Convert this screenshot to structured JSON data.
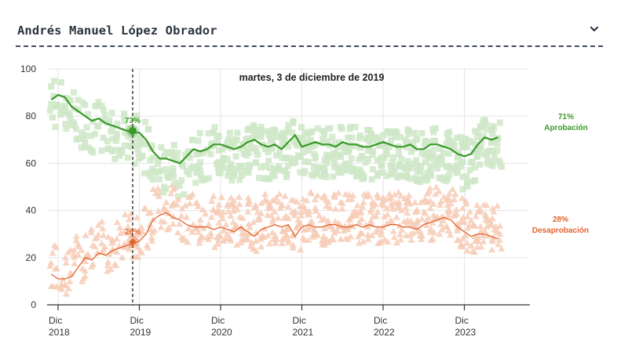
{
  "header": {
    "title": "Andrés Manuel López Obrador",
    "chevron_icon": "chevron-down-icon"
  },
  "colors": {
    "approve": "#3a9a2a",
    "approve_light": "#cfe8c8",
    "disapprove": "#e2632e",
    "disapprove_light": "#f7cdb7",
    "grid": "#e5e5e5",
    "axis": "#333333"
  },
  "chart_data": {
    "type": "line",
    "title": "",
    "hover_date": "martes, 3 de diciembre de 2019",
    "xlabel": "",
    "ylabel": "",
    "ylim": [
      0,
      100
    ],
    "yticks": [
      0,
      20,
      40,
      60,
      80,
      100
    ],
    "xlim": [
      "2018-11",
      "2024-05"
    ],
    "xticks": [
      {
        "month": "Dic",
        "year": "2018",
        "at": "2018-12"
      },
      {
        "month": "Dic",
        "year": "2019",
        "at": "2019-12"
      },
      {
        "month": "Dic",
        "year": "2020",
        "at": "2020-12"
      },
      {
        "month": "Dic",
        "year": "2021",
        "at": "2021-12"
      },
      {
        "month": "Dic",
        "year": "2022",
        "at": "2022-12"
      },
      {
        "month": "Dic",
        "year": "2023",
        "at": "2023-12"
      }
    ],
    "grid": true,
    "x_months": [
      "2018-11",
      "2018-12",
      "2019-01",
      "2019-02",
      "2019-03",
      "2019-04",
      "2019-05",
      "2019-06",
      "2019-07",
      "2019-08",
      "2019-09",
      "2019-10",
      "2019-11",
      "2019-12",
      "2020-01",
      "2020-02",
      "2020-03",
      "2020-04",
      "2020-05",
      "2020-06",
      "2020-07",
      "2020-08",
      "2020-09",
      "2020-10",
      "2020-11",
      "2020-12",
      "2021-01",
      "2021-02",
      "2021-03",
      "2021-04",
      "2021-05",
      "2021-06",
      "2021-07",
      "2021-08",
      "2021-09",
      "2021-10",
      "2021-11",
      "2021-12",
      "2022-01",
      "2022-02",
      "2022-03",
      "2022-04",
      "2022-05",
      "2022-06",
      "2022-07",
      "2022-08",
      "2022-09",
      "2022-10",
      "2022-11",
      "2022-12",
      "2023-01",
      "2023-02",
      "2023-03",
      "2023-04",
      "2023-05",
      "2023-06",
      "2023-07",
      "2023-08",
      "2023-09",
      "2023-10",
      "2023-11",
      "2023-12",
      "2024-01",
      "2024-02",
      "2024-03",
      "2024-04",
      "2024-05"
    ],
    "series": [
      {
        "name": "Aprobación",
        "end_value": "71%",
        "hover_value": "73%",
        "values": [
          87,
          89,
          88,
          84,
          82,
          80,
          78,
          79,
          77,
          76,
          75,
          74,
          73,
          73,
          70,
          65,
          62,
          62,
          61,
          60,
          63,
          66,
          65,
          66,
          68,
          68,
          67,
          66,
          67,
          69,
          70,
          68,
          67,
          68,
          66,
          69,
          72,
          67,
          68,
          69,
          68,
          68,
          67,
          69,
          68,
          68,
          67,
          67,
          68,
          69,
          68,
          67,
          67,
          68,
          66,
          66,
          68,
          68,
          67,
          66,
          64,
          63,
          64,
          68,
          71,
          70,
          71
        ]
      },
      {
        "name": "Desaprobación",
        "end_value": "28%",
        "hover_value": "26%",
        "values": [
          13,
          11,
          11,
          12,
          16,
          20,
          19,
          22,
          21,
          23,
          24,
          25,
          26,
          27,
          30,
          36,
          38,
          39,
          37,
          36,
          34,
          33,
          33,
          33,
          32,
          33,
          32,
          31,
          33,
          31,
          29,
          32,
          33,
          34,
          33,
          34,
          29,
          33,
          34,
          33,
          33,
          34,
          34,
          33,
          33,
          34,
          33,
          34,
          33,
          33,
          34,
          34,
          33,
          33,
          32,
          34,
          35,
          36,
          37,
          36,
          33,
          31,
          29,
          30,
          30,
          29,
          28
        ]
      }
    ]
  }
}
